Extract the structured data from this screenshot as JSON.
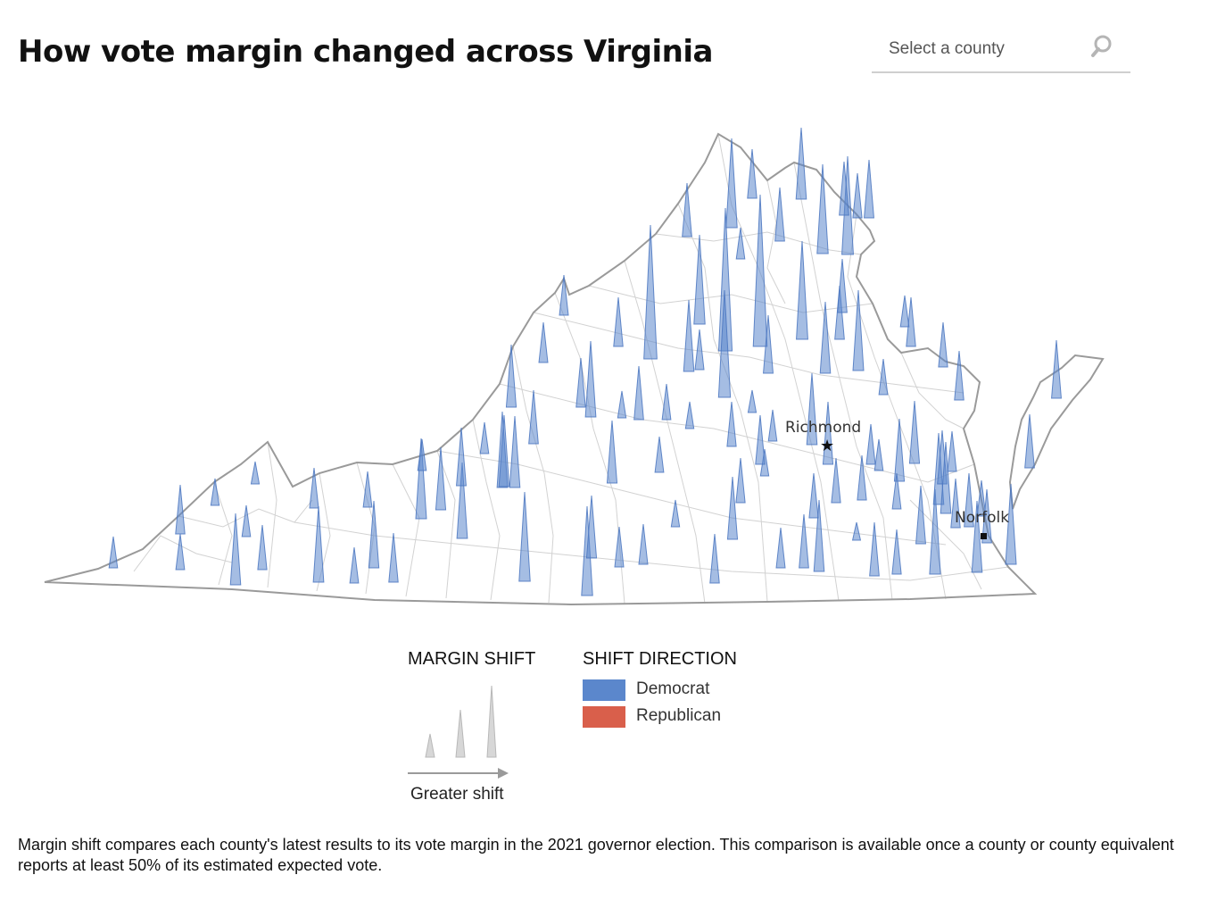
{
  "header": {
    "title": "How vote margin changed across Virginia"
  },
  "search": {
    "placeholder": "Select a county",
    "icon": "search-icon"
  },
  "map": {
    "cities": [
      {
        "name": "Richmond",
        "marker": "star"
      },
      {
        "name": "Norfolk",
        "marker": "square"
      }
    ],
    "colors": {
      "democrat": "#5b87cc",
      "republican": "#d95f4b",
      "border": "#9a9a9a",
      "county_line": "#d2d2d2"
    }
  },
  "legend": {
    "margin_shift": {
      "title": "MARGIN SHIFT",
      "arrow_label": "Greater shift"
    },
    "shift_direction": {
      "title": "SHIFT DIRECTION",
      "items": [
        {
          "label": "Democrat",
          "color": "#5b87cc"
        },
        {
          "label": "Republican",
          "color": "#d95f4b"
        }
      ]
    }
  },
  "footnote": "Margin shift compares each county's latest results to its vote margin in the 2021 governor election. This comparison is available once a county or county equivalent reports at least 50% of its estimated expected vote."
}
